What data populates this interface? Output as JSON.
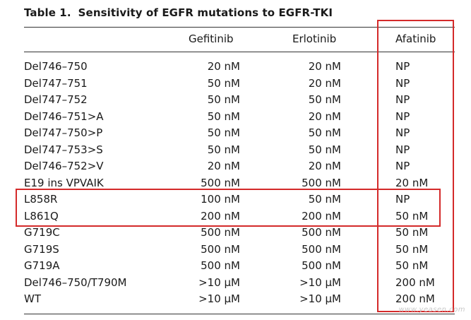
{
  "table": {
    "number": "Table 1.",
    "title": "Sensitivity of EGFR mutations to EGFR-TKI",
    "headers": [
      "Gefitinib",
      "Erlotinib",
      "Afatinib"
    ],
    "rows": [
      {
        "mutation": "Del746–750",
        "gefitinib": "20 nM",
        "erlotinib": "20 nM",
        "afatinib": "NP"
      },
      {
        "mutation": "Del747–751",
        "gefitinib": "50 nM",
        "erlotinib": "20 nM",
        "afatinib": "NP"
      },
      {
        "mutation": "Del747–752",
        "gefitinib": "50 nM",
        "erlotinib": "50 nM",
        "afatinib": "NP"
      },
      {
        "mutation": "Del746–751>A",
        "gefitinib": "50 nM",
        "erlotinib": "20 nM",
        "afatinib": "NP"
      },
      {
        "mutation": "Del747–750>P",
        "gefitinib": "50 nM",
        "erlotinib": "50 nM",
        "afatinib": "NP"
      },
      {
        "mutation": "Del747–753>S",
        "gefitinib": "50 nM",
        "erlotinib": "50 nM",
        "afatinib": "NP"
      },
      {
        "mutation": "Del746–752>V",
        "gefitinib": "20 nM",
        "erlotinib": "20 nM",
        "afatinib": "NP"
      },
      {
        "mutation": "E19 ins VPVAIK",
        "gefitinib": "500 nM",
        "erlotinib": "500 nM",
        "afatinib": "20 nM"
      },
      {
        "mutation": "L858R",
        "gefitinib": "100 nM",
        "erlotinib": "50 nM",
        "afatinib": "NP"
      },
      {
        "mutation": "L861Q",
        "gefitinib": "200 nM",
        "erlotinib": "200 nM",
        "afatinib": "50 nM"
      },
      {
        "mutation": "G719C",
        "gefitinib": "500 nM",
        "erlotinib": "500 nM",
        "afatinib": "50 nM"
      },
      {
        "mutation": "G719S",
        "gefitinib": "500 nM",
        "erlotinib": "500 nM",
        "afatinib": "50 nM"
      },
      {
        "mutation": "G719A",
        "gefitinib": "500 nM",
        "erlotinib": "500 nM",
        "afatinib": "50 nM"
      },
      {
        "mutation": "Del746–750/T790M",
        "gefitinib": ">10 µM",
        "erlotinib": ">10 µM",
        "afatinib": "200 nM"
      },
      {
        "mutation": "WT",
        "gefitinib": ">10 µM",
        "erlotinib": ">10 µM",
        "afatinib": "200 nM"
      }
    ]
  },
  "highlight_color": "#d42a2a",
  "watermark": "www.yeasen.com"
}
